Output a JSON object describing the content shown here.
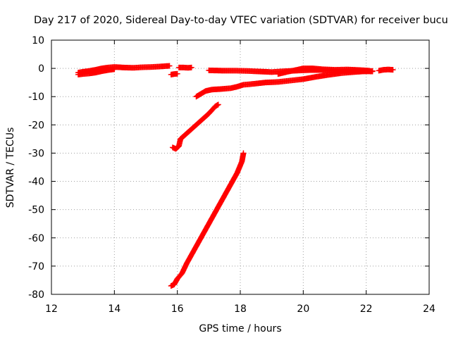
{
  "chart_data": {
    "type": "scatter",
    "title": "Day 217 of 2020, Sidereal Day-to-day VTEC variation (SDTVAR) for receiver bucu",
    "xlabel": "GPS time / hours",
    "ylabel": "SDTVAR / TECUs",
    "xlim": [
      12,
      24
    ],
    "ylim": [
      -80,
      10
    ],
    "xticks": [
      12,
      14,
      16,
      18,
      20,
      22,
      24
    ],
    "yticks": [
      10,
      0,
      -10,
      -20,
      -30,
      -40,
      -50,
      -60,
      -70,
      -80
    ],
    "grid": true,
    "marker": "+",
    "color": "#ff0000",
    "series": [
      {
        "name": "arc-1",
        "points": [
          [
            12.85,
            -1.5
          ],
          [
            13.0,
            -1.2
          ],
          [
            13.2,
            -0.9
          ],
          [
            13.4,
            -0.5
          ],
          [
            13.6,
            0.0
          ],
          [
            13.8,
            0.3
          ],
          [
            14.0,
            0.5
          ],
          [
            14.3,
            0.3
          ],
          [
            14.6,
            0.2
          ],
          [
            14.9,
            0.4
          ],
          [
            15.2,
            0.5
          ],
          [
            15.5,
            0.7
          ],
          [
            15.75,
            0.9
          ]
        ]
      },
      {
        "name": "arc-1-lower",
        "points": [
          [
            12.85,
            -2.2
          ],
          [
            13.0,
            -2.0
          ],
          [
            13.2,
            -1.8
          ],
          [
            13.4,
            -1.5
          ],
          [
            13.6,
            -1.0
          ],
          [
            13.8,
            -0.6
          ],
          [
            14.0,
            -0.3
          ]
        ]
      },
      {
        "name": "arc-2",
        "points": [
          [
            15.8,
            -2.2
          ],
          [
            15.9,
            -2.0
          ],
          [
            16.0,
            -1.9
          ]
        ]
      },
      {
        "name": "arc-3",
        "points": [
          [
            16.05,
            0.3
          ],
          [
            16.2,
            0.3
          ],
          [
            16.35,
            0.2
          ],
          [
            16.45,
            0.3
          ]
        ]
      },
      {
        "name": "arc-4",
        "points": [
          [
            17.0,
            -0.7
          ],
          [
            17.4,
            -0.8
          ],
          [
            17.8,
            -0.8
          ],
          [
            18.2,
            -0.9
          ],
          [
            18.6,
            -1.1
          ],
          [
            19.0,
            -1.3
          ],
          [
            19.4,
            -1.0
          ],
          [
            19.8,
            -0.8
          ],
          [
            20.2,
            -0.6
          ],
          [
            20.6,
            -0.6
          ],
          [
            21.0,
            -0.8
          ],
          [
            21.4,
            -1.0
          ],
          [
            21.8,
            -1.0
          ],
          [
            22.2,
            -1.1
          ]
        ]
      },
      {
        "name": "arc-5",
        "points": [
          [
            19.2,
            -2.0
          ],
          [
            19.5,
            -1.2
          ],
          [
            19.8,
            -0.5
          ],
          [
            20.0,
            0.0
          ],
          [
            20.3,
            0.0
          ],
          [
            20.6,
            -0.3
          ],
          [
            21.0,
            -0.5
          ],
          [
            21.4,
            -0.4
          ],
          [
            21.8,
            -0.6
          ],
          [
            22.1,
            -0.8
          ]
        ]
      },
      {
        "name": "arc-6",
        "points": [
          [
            16.6,
            -10.0
          ],
          [
            16.75,
            -9.0
          ],
          [
            16.9,
            -8.0
          ],
          [
            17.1,
            -7.5
          ],
          [
            17.4,
            -7.3
          ],
          [
            17.7,
            -7.0
          ],
          [
            17.9,
            -6.5
          ],
          [
            18.1,
            -5.8
          ],
          [
            18.4,
            -5.5
          ],
          [
            18.8,
            -5.0
          ],
          [
            19.2,
            -4.8
          ],
          [
            19.6,
            -4.3
          ],
          [
            20.0,
            -3.8
          ],
          [
            20.4,
            -3.0
          ],
          [
            20.8,
            -2.3
          ],
          [
            21.2,
            -1.7
          ],
          [
            21.6,
            -1.3
          ],
          [
            22.0,
            -1.0
          ],
          [
            22.2,
            -0.9
          ]
        ]
      },
      {
        "name": "arc-7",
        "points": [
          [
            22.4,
            -0.8
          ],
          [
            22.55,
            -0.5
          ],
          [
            22.7,
            -0.4
          ],
          [
            22.85,
            -0.5
          ]
        ]
      },
      {
        "name": "arc-8",
        "points": [
          [
            15.85,
            -28.0
          ],
          [
            15.95,
            -28.5
          ],
          [
            16.05,
            -27.5
          ],
          [
            16.1,
            -25.0
          ],
          [
            16.25,
            -23.5
          ],
          [
            16.4,
            -22.0
          ],
          [
            16.6,
            -20.0
          ],
          [
            16.8,
            -18.0
          ],
          [
            17.0,
            -16.0
          ],
          [
            17.2,
            -13.5
          ],
          [
            17.3,
            -12.8
          ]
        ]
      },
      {
        "name": "arc-9",
        "points": [
          [
            15.8,
            -77.0
          ],
          [
            15.9,
            -76.5
          ],
          [
            16.0,
            -74.5
          ],
          [
            16.15,
            -72.5
          ],
          [
            16.3,
            -69.0
          ],
          [
            16.5,
            -65.0
          ],
          [
            16.7,
            -61.0
          ],
          [
            16.9,
            -57.0
          ],
          [
            17.1,
            -53.0
          ],
          [
            17.3,
            -49.0
          ],
          [
            17.5,
            -45.0
          ],
          [
            17.7,
            -41.0
          ],
          [
            17.9,
            -37.0
          ],
          [
            18.05,
            -33.0
          ],
          [
            18.1,
            -30.0
          ]
        ]
      }
    ]
  }
}
